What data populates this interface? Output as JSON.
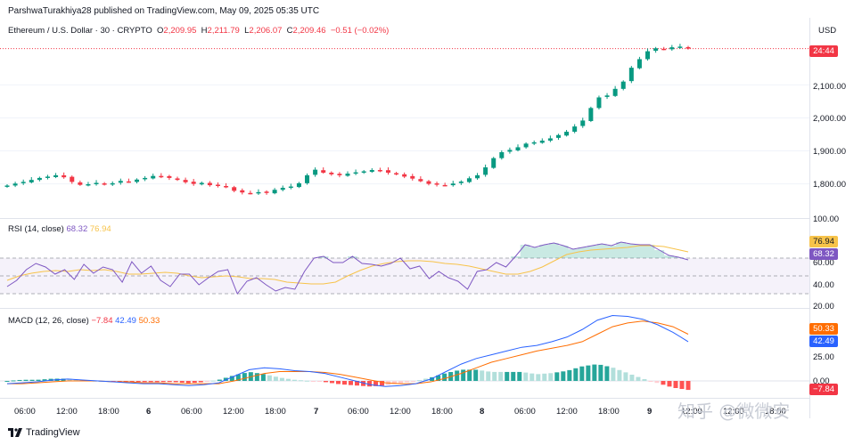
{
  "header": {
    "published": "ParshwaTurakhiya28 published on TradingView.com, May 09, 2025 05:35 UTC"
  },
  "symbol": {
    "name": "Ethereum / U.S. Dollar · 30 · CRYPTO",
    "o_label": "O",
    "o": "2,209.95",
    "h_label": "H",
    "h": "2,211.79",
    "l_label": "L",
    "l": "2,206.07",
    "c_label": "C",
    "c": "2,209.46",
    "change": "−0.51 (−0.02%)"
  },
  "price_axis": {
    "currency": "USD",
    "ticks": [
      "2,100.00",
      "2,000.00",
      "1,900.00",
      "1,800.00"
    ],
    "countdown": "24:44"
  },
  "rsi": {
    "label": "RSI (14, close)",
    "value": "68.32",
    "ma": "76.94",
    "ticks": [
      "100.00",
      "60.00",
      "40.00",
      "20.00"
    ]
  },
  "macd": {
    "label": "MACD (12, 26, close)",
    "hist": "−7.84",
    "macd": "42.49",
    "signal": "50.33",
    "ticks": [
      "25.00",
      "0.00"
    ]
  },
  "time_axis": {
    "labels": [
      "06:00",
      "12:00",
      "18:00",
      "6",
      "06:00",
      "12:00",
      "18:00",
      "7",
      "06:00",
      "12:00",
      "18:00",
      "8",
      "06:00",
      "12:00",
      "18:00",
      "9",
      "12:00",
      "12:00",
      "18:00"
    ]
  },
  "brand": {
    "name": "TradingView"
  },
  "watermark": {
    "text": "知乎 @微微安"
  },
  "colors": {
    "up": "#089981",
    "down": "#f23645",
    "rsi": "#7e57c2",
    "rsi_ma": "#f7c34a",
    "macd": "#2962ff",
    "signal": "#ff6d00"
  },
  "chart_data": [
    {
      "type": "candlestick",
      "title": "Ethereum / U.S. Dollar · 30 · CRYPTO",
      "ylim": [
        1750,
        2250
      ],
      "y_ticks": [
        2100,
        2000,
        1900,
        1800
      ],
      "series": [
        {
          "name": "close",
          "values": [
            1795,
            1801,
            1806,
            1812,
            1818,
            1822,
            1826,
            1820,
            1806,
            1797,
            1799,
            1803,
            1798,
            1802,
            1809,
            1806,
            1813,
            1818,
            1824,
            1822,
            1818,
            1812,
            1805,
            1800,
            1803,
            1796,
            1795,
            1790,
            1779,
            1774,
            1771,
            1775,
            1773,
            1782,
            1788,
            1792,
            1802,
            1826,
            1843,
            1834,
            1829,
            1826,
            1831,
            1835,
            1838,
            1842,
            1840,
            1834,
            1829,
            1822,
            1816,
            1808,
            1800,
            1798,
            1796,
            1801,
            1807,
            1817,
            1826,
            1850,
            1878,
            1896,
            1903,
            1911,
            1922,
            1926,
            1931,
            1938,
            1948,
            1958,
            1974,
            1992,
            2030,
            2062,
            2068,
            2088,
            2110,
            2152,
            2178,
            2202,
            2211,
            2208,
            2214,
            2216,
            2210
          ]
        }
      ]
    },
    {
      "type": "line",
      "title": "RSI (14, close)",
      "ylim": [
        20,
        100
      ],
      "y_ticks": [
        100,
        60,
        40,
        20
      ],
      "series": [
        {
          "name": "RSI",
          "values": [
            38,
            45,
            57,
            64,
            60,
            52,
            57,
            46,
            63,
            53,
            60,
            57,
            43,
            66,
            53,
            61,
            45,
            38,
            52,
            52,
            40,
            48,
            55,
            57,
            30,
            44,
            48,
            40,
            33,
            37,
            35,
            55,
            70,
            72,
            65,
            65,
            72,
            64,
            63,
            61,
            64,
            70,
            58,
            61,
            47,
            55,
            48,
            44,
            35,
            55,
            57,
            65,
            60,
            72,
            85,
            82,
            85,
            87,
            84,
            80,
            82,
            84,
            86,
            84,
            88,
            86,
            85,
            85,
            79,
            73,
            71,
            68
          ]
        },
        {
          "name": "RSI-based MA",
          "values": [
            45,
            50,
            53,
            55,
            56,
            55,
            57,
            56,
            57,
            55,
            52,
            52,
            53,
            54,
            53,
            50,
            48,
            49,
            50,
            49,
            47,
            47,
            46,
            43,
            42,
            41,
            41,
            43,
            50,
            56,
            61,
            64,
            66,
            67,
            67,
            66,
            64,
            63,
            61,
            58,
            55,
            52,
            52,
            55,
            60,
            67,
            74,
            77,
            79,
            80,
            81,
            82,
            84,
            84,
            83,
            80,
            77
          ]
        }
      ]
    },
    {
      "type": "line",
      "title": "MACD (12, 26, close)",
      "ylim": [
        -15,
        75
      ],
      "y_ticks": [
        25,
        0
      ],
      "series": [
        {
          "name": "MACD",
          "values": [
            -3,
            -2,
            -1,
            1,
            2,
            1,
            0,
            -1,
            -2,
            -3,
            -3,
            -4,
            -5,
            -4,
            -2,
            5,
            12,
            14,
            13,
            11,
            10,
            8,
            4,
            0,
            -4,
            -6,
            -5,
            -3,
            2,
            10,
            18,
            24,
            28,
            32,
            36,
            38,
            42,
            47,
            55,
            65,
            70,
            69,
            66,
            60,
            52,
            42
          ]
        },
        {
          "name": "Signal",
          "values": [
            -3,
            -3,
            -2,
            -1,
            0,
            0,
            0,
            -1,
            -1,
            -2,
            -2,
            -3,
            -3,
            -3,
            -3,
            0,
            4,
            8,
            10,
            10,
            10,
            9,
            7,
            4,
            1,
            -2,
            -3,
            -3,
            -1,
            3,
            8,
            14,
            20,
            24,
            28,
            32,
            35,
            38,
            42,
            50,
            58,
            62,
            64,
            62,
            58,
            50
          ]
        },
        {
          "name": "Histogram",
          "values": [
            -7.84
          ]
        }
      ]
    }
  ]
}
